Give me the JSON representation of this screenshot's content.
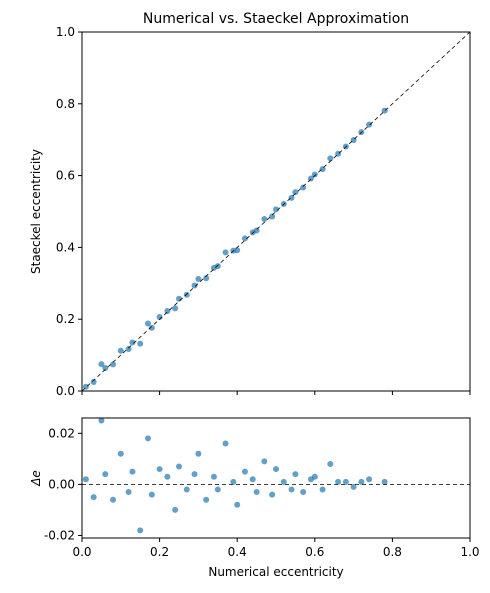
{
  "chart_data": [
    {
      "type": "scatter",
      "title": "Numerical vs. Staeckel Approximation",
      "ylabel": "Staeckel eccentricity",
      "color": "#1f77b4",
      "x": [
        0.01,
        0.03,
        0.05,
        0.06,
        0.08,
        0.1,
        0.12,
        0.13,
        0.15,
        0.17,
        0.18,
        0.2,
        0.22,
        0.24,
        0.25,
        0.27,
        0.29,
        0.3,
        0.32,
        0.34,
        0.35,
        0.37,
        0.39,
        0.4,
        0.42,
        0.44,
        0.45,
        0.47,
        0.49,
        0.5,
        0.52,
        0.54,
        0.55,
        0.57,
        0.59,
        0.6,
        0.62,
        0.64,
        0.66,
        0.68,
        0.7,
        0.72,
        0.74,
        0.78
      ],
      "y": [
        0.012,
        0.025,
        0.075,
        0.064,
        0.074,
        0.112,
        0.117,
        0.135,
        0.132,
        0.188,
        0.176,
        0.206,
        0.223,
        0.23,
        0.257,
        0.268,
        0.294,
        0.312,
        0.314,
        0.343,
        0.348,
        0.386,
        0.391,
        0.392,
        0.425,
        0.442,
        0.447,
        0.479,
        0.486,
        0.506,
        0.521,
        0.538,
        0.554,
        0.567,
        0.592,
        0.603,
        0.618,
        0.648,
        0.661,
        0.681,
        0.699,
        0.721,
        0.742,
        0.781
      ],
      "xlim": [
        0,
        1
      ],
      "ylim": [
        0,
        1
      ],
      "xticks": [
        0,
        0.2,
        0.4,
        0.6,
        0.8,
        1
      ],
      "yticks": [
        {
          "value": 0,
          "label": "0.0"
        },
        0.2,
        0.4,
        0.6,
        0.8,
        {
          "value": 1,
          "label": "1.0"
        }
      ],
      "reference": "diagonal"
    },
    {
      "type": "scatter",
      "xlabel": "Numerical eccentricity",
      "ylabel": "Δe",
      "color": "#1f77b4",
      "x": [
        0.01,
        0.03,
        0.05,
        0.06,
        0.08,
        0.1,
        0.12,
        0.13,
        0.15,
        0.17,
        0.18,
        0.2,
        0.22,
        0.24,
        0.25,
        0.27,
        0.29,
        0.3,
        0.32,
        0.34,
        0.35,
        0.37,
        0.39,
        0.4,
        0.42,
        0.44,
        0.45,
        0.47,
        0.49,
        0.5,
        0.52,
        0.54,
        0.55,
        0.57,
        0.59,
        0.6,
        0.62,
        0.64,
        0.66,
        0.68,
        0.7,
        0.72,
        0.74,
        0.78
      ],
      "y": [
        0.002,
        -0.005,
        0.025,
        0.004,
        -0.006,
        0.012,
        -0.003,
        0.005,
        -0.018,
        0.018,
        -0.004,
        0.006,
        0.003,
        -0.01,
        0.007,
        -0.002,
        0.004,
        0.012,
        -0.006,
        0.003,
        -0.002,
        0.016,
        0.001,
        -0.008,
        0.005,
        0.002,
        -0.003,
        0.009,
        -0.004,
        0.006,
        0.001,
        -0.002,
        0.004,
        -0.003,
        0.002,
        0.003,
        -0.002,
        0.008,
        0.001,
        0.001,
        -0.001,
        0.001,
        0.002,
        0.001
      ],
      "xlim": [
        0,
        1
      ],
      "ylim": [
        -0.021,
        0.026
      ],
      "xticks": [
        {
          "value": 0,
          "label": "0.0"
        },
        0.2,
        0.4,
        0.6,
        0.8,
        {
          "value": 1,
          "label": "1.0"
        }
      ],
      "yticks": [
        -0.02,
        {
          "value": 0,
          "label": "0.00"
        },
        0.02
      ],
      "reference": "zero"
    }
  ]
}
